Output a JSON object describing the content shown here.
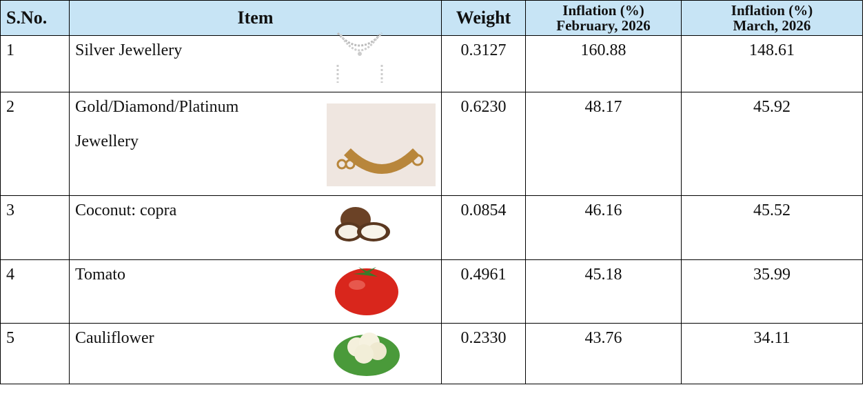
{
  "table": {
    "header": [
      [
        "S.No."
      ],
      [
        "Item"
      ],
      [
        "Weight"
      ],
      [
        "Inflation (%)",
        "February, 2026"
      ],
      [
        "Inflation (%)",
        "March, 2026"
      ]
    ],
    "rows": [
      [
        "1",
        "Silver Jewellery",
        "0.3127",
        "160.88",
        "148.61"
      ],
      [
        "2",
        "Gold/Diamond/Platinum Jewellery",
        "0.6230",
        "48.17",
        "45.92"
      ],
      [
        "3",
        "Coconut: copra",
        "0.0854",
        "46.16",
        "45.52"
      ],
      [
        "4",
        "Tomato",
        "0.4961",
        "45.18",
        "35.99"
      ],
      [
        "5",
        "Cauliflower",
        "0.2330",
        "43.76",
        "34.11"
      ]
    ]
  }
}
